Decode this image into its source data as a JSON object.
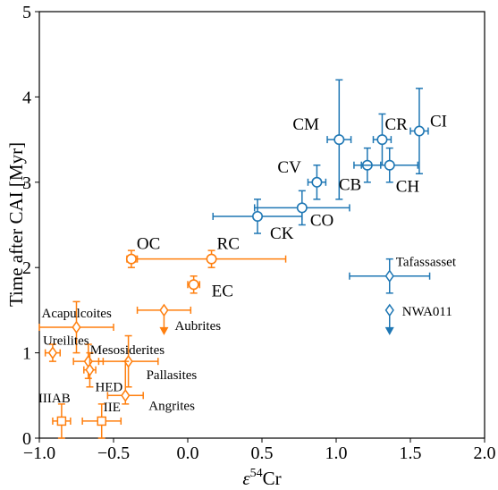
{
  "colors": {
    "carbonaceous": "#1f77b4",
    "noncarbonaceous": "#ff7f0e",
    "axis": "#000000"
  },
  "chart_data": {
    "type": "scatter",
    "xlabel_symbol": "ε",
    "xlabel_sup": "54",
    "xlabel_tail": "Cr",
    "ylabel": "Time after CAI [Myr]",
    "xlim": [
      -1.0,
      2.0
    ],
    "ylim": [
      0,
      5
    ],
    "xticks": [
      "−1.0",
      "−0.5",
      "0.0",
      "0.5",
      "1.0",
      "1.5",
      "2.0"
    ],
    "yticks": [
      "0",
      "1",
      "2",
      "3",
      "4",
      "5"
    ],
    "grid": false,
    "points": [
      {
        "label": "CI",
        "group": "carbonaceous",
        "marker": "circle",
        "x": 1.56,
        "y": 3.6,
        "xerr": 0.06,
        "yerr": [
          0.5,
          0.5
        ]
      },
      {
        "label": "CR",
        "group": "carbonaceous",
        "marker": "circle",
        "x": 1.31,
        "y": 3.5,
        "xerr": 0.06,
        "yerr": [
          0.3,
          0.3
        ]
      },
      {
        "label": "CM",
        "group": "carbonaceous",
        "marker": "circle",
        "x": 1.02,
        "y": 3.5,
        "xerr": 0.08,
        "yerr": [
          0.7,
          0.7
        ]
      },
      {
        "label": "CB",
        "group": "carbonaceous",
        "marker": "circle",
        "x": 1.21,
        "y": 3.2,
        "xerr": 0.09,
        "yerr": [
          0.2,
          0.2
        ]
      },
      {
        "label": "CH",
        "group": "carbonaceous",
        "marker": "circle",
        "x": 1.36,
        "y": 3.2,
        "xerr": 0.19,
        "yerr": [
          0.2,
          0.2
        ]
      },
      {
        "label": "CV",
        "group": "carbonaceous",
        "marker": "circle",
        "x": 0.87,
        "y": 3.0,
        "xerr": 0.06,
        "yerr": [
          0.2,
          0.2
        ]
      },
      {
        "label": "CO",
        "group": "carbonaceous",
        "marker": "circle",
        "x": 0.77,
        "y": 2.7,
        "xerr": 0.32,
        "yerr": [
          0.2,
          0.2
        ]
      },
      {
        "label": "CK",
        "group": "carbonaceous",
        "marker": "circle",
        "x": 0.47,
        "y": 2.6,
        "xerr": 0.3,
        "yerr": [
          0.2,
          0.2
        ]
      },
      {
        "label": "Tafassasset",
        "group": "carbonaceous",
        "marker": "diamond",
        "x": 1.36,
        "y": 1.9,
        "xerr": 0.27,
        "yerr": [
          0.2,
          0.2
        ]
      },
      {
        "label": "NWA011",
        "group": "carbonaceous",
        "marker": "diamond",
        "x": 1.36,
        "y": 1.5,
        "xerr": 0.0,
        "yerr": [
          0.0,
          0.0
        ],
        "upper_limit": true
      },
      {
        "label": "OC",
        "group": "noncarbonaceous",
        "marker": "circle",
        "x": -0.38,
        "y": 2.1,
        "xerr": 0.03,
        "yerr": [
          0.1,
          0.1
        ]
      },
      {
        "label": "RC",
        "group": "noncarbonaceous",
        "marker": "circle",
        "x": 0.16,
        "y": 2.1,
        "xerr": 0.5,
        "yerr": [
          0.1,
          0.1
        ]
      },
      {
        "label": "EC",
        "group": "noncarbonaceous",
        "marker": "circle",
        "x": 0.04,
        "y": 1.8,
        "xerr": 0.04,
        "yerr": [
          0.1,
          0.1
        ]
      },
      {
        "label": "Aubrites",
        "group": "noncarbonaceous",
        "marker": "diamond",
        "x": -0.16,
        "y": 1.5,
        "xerr": 0.18,
        "yerr": [
          0.0,
          0.0
        ],
        "upper_limit": true
      },
      {
        "label": "Acapulcoites",
        "group": "noncarbonaceous",
        "marker": "diamond",
        "x": -0.75,
        "y": 1.3,
        "xerr": 0.25,
        "yerr": [
          0.3,
          0.3
        ]
      },
      {
        "label": "Ureilites",
        "group": "noncarbonaceous",
        "marker": "diamond",
        "x": -0.91,
        "y": 1.0,
        "xerr": 0.05,
        "yerr": [
          0.1,
          0.1
        ]
      },
      {
        "label": "Mesosiderites",
        "group": "noncarbonaceous",
        "marker": "diamond",
        "x": -0.67,
        "y": 0.9,
        "xerr": 0.1,
        "yerr": [
          0.2,
          0.2
        ]
      },
      {
        "label": "Pallasites",
        "group": "noncarbonaceous",
        "marker": "diamond",
        "x": -0.4,
        "y": 0.9,
        "xerr": 0.2,
        "yerr": [
          0.3,
          0.3
        ]
      },
      {
        "label": "HED",
        "group": "noncarbonaceous",
        "marker": "diamond",
        "x": -0.66,
        "y": 0.8,
        "xerr": 0.04,
        "yerr": [
          0.2,
          0.2
        ]
      },
      {
        "label": "Angrites",
        "group": "noncarbonaceous",
        "marker": "diamond",
        "x": -0.42,
        "y": 0.5,
        "xerr": 0.12,
        "yerr": [
          0.1,
          0.4
        ]
      },
      {
        "label": "IIIAB",
        "group": "noncarbonaceous",
        "marker": "square",
        "x": -0.85,
        "y": 0.2,
        "xerr": 0.06,
        "yerr": [
          0.2,
          0.2
        ]
      },
      {
        "label": "IIE",
        "group": "noncarbonaceous",
        "marker": "square",
        "x": -0.58,
        "y": 0.2,
        "xerr": 0.13,
        "yerr": [
          0.2,
          0.2
        ]
      }
    ]
  }
}
